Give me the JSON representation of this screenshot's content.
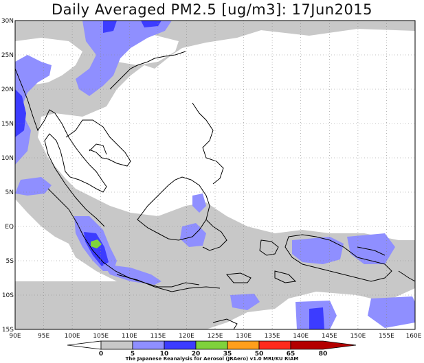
{
  "title": "Daily Averaged PM2.5 [ug/m3]: 17Jun2015",
  "lat_labels": [
    "30N",
    "25N",
    "20N",
    "15N",
    "10N",
    "5N",
    "EQ",
    "5S",
    "10S",
    "15S"
  ],
  "lon_labels": [
    "90E",
    "95E",
    "100E",
    "105E",
    "110E",
    "115E",
    "120E",
    "125E",
    "130E",
    "135E",
    "140E",
    "145E",
    "150E",
    "155E",
    "160E"
  ],
  "colorbar": {
    "ticks": [
      "0",
      "5",
      "10",
      "20",
      "35",
      "50",
      "65",
      "80"
    ],
    "colors": [
      "#ffffff",
      "#c8c8c8",
      "#8f8fff",
      "#3c3cff",
      "#7fd23c",
      "#ff9f1c",
      "#ff2a1c",
      "#b40000"
    ]
  },
  "credit": "The Japanese Reanalysis for Aerosol (JRAero) v1.0 MRI/KU RIAM"
}
